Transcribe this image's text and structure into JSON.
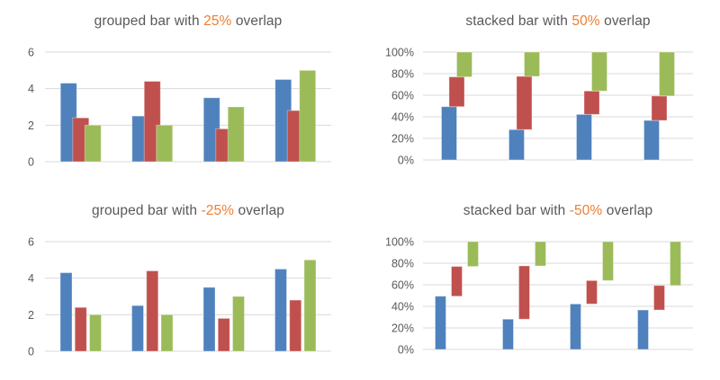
{
  "theme": {
    "background": "#ffffff",
    "title_color": "#595959",
    "highlight_color": "#ED7D31",
    "gridline_color": "#d9d9d9",
    "tick_label_color": "#595959"
  },
  "chart_data": [
    {
      "type": "bar",
      "variant": "grouped",
      "overlap_percent": 25,
      "title": {
        "before": "grouped bar with ",
        "highlight": "25%",
        "after": " overlap"
      },
      "series": [
        {
          "name": "blue",
          "color": "#4F81BD",
          "values": [
            4.3,
            2.5,
            3.5,
            4.5
          ]
        },
        {
          "name": "red",
          "color": "#C0504D",
          "values": [
            2.4,
            4.4,
            1.8,
            2.8
          ]
        },
        {
          "name": "green",
          "color": "#9BBB59",
          "values": [
            2.0,
            2.0,
            3.0,
            5.0
          ]
        }
      ],
      "ylim": [
        0,
        6
      ],
      "yticks": [
        0,
        2,
        4,
        6
      ],
      "ytick_labels": [
        "0",
        "2",
        "4",
        "6"
      ],
      "xlabel": "",
      "ylabel": "",
      "grid": true,
      "legend": false
    },
    {
      "type": "bar",
      "variant": "stacked-100",
      "overlap_percent": 50,
      "title": {
        "before": "stacked bar with ",
        "highlight": "50%",
        "after": " overlap"
      },
      "series": [
        {
          "name": "blue",
          "color": "#4F81BD",
          "values": [
            49.4,
            28.1,
            42.2,
            36.6
          ]
        },
        {
          "name": "red",
          "color": "#C0504D",
          "values": [
            27.6,
            49.4,
            21.7,
            22.7
          ]
        },
        {
          "name": "green",
          "color": "#9BBB59",
          "values": [
            23.0,
            22.5,
            36.1,
            40.7
          ]
        }
      ],
      "ylim": [
        0,
        100
      ],
      "yticks": [
        0,
        20,
        40,
        60,
        80,
        100
      ],
      "ytick_labels": [
        "0%",
        "20%",
        "40%",
        "60%",
        "80%",
        "100%"
      ],
      "xlabel": "",
      "ylabel": "",
      "grid": true,
      "legend": false
    },
    {
      "type": "bar",
      "variant": "grouped",
      "overlap_percent": -25,
      "title": {
        "before": "grouped bar with ",
        "highlight": "-25%",
        "after": " overlap"
      },
      "series": [
        {
          "name": "blue",
          "color": "#4F81BD",
          "values": [
            4.3,
            2.5,
            3.5,
            4.5
          ]
        },
        {
          "name": "red",
          "color": "#C0504D",
          "values": [
            2.4,
            4.4,
            1.8,
            2.8
          ]
        },
        {
          "name": "green",
          "color": "#9BBB59",
          "values": [
            2.0,
            2.0,
            3.0,
            5.0
          ]
        }
      ],
      "ylim": [
        0,
        6
      ],
      "yticks": [
        0,
        2,
        4,
        6
      ],
      "ytick_labels": [
        "0",
        "2",
        "4",
        "6"
      ],
      "xlabel": "",
      "ylabel": "",
      "grid": true,
      "legend": false
    },
    {
      "type": "bar",
      "variant": "stacked-100",
      "overlap_percent": -50,
      "title": {
        "before": "stacked bar with ",
        "highlight": "-50%",
        "after": " overlap"
      },
      "series": [
        {
          "name": "blue",
          "color": "#4F81BD",
          "values": [
            49.4,
            28.1,
            42.2,
            36.6
          ]
        },
        {
          "name": "red",
          "color": "#C0504D",
          "values": [
            27.6,
            49.4,
            21.7,
            22.7
          ]
        },
        {
          "name": "green",
          "color": "#9BBB59",
          "values": [
            23.0,
            22.5,
            36.1,
            40.7
          ]
        }
      ],
      "ylim": [
        0,
        100
      ],
      "yticks": [
        0,
        20,
        40,
        60,
        80,
        100
      ],
      "ytick_labels": [
        "0%",
        "20%",
        "40%",
        "60%",
        "80%",
        "100%"
      ],
      "xlabel": "",
      "ylabel": "",
      "grid": true,
      "legend": false
    }
  ]
}
